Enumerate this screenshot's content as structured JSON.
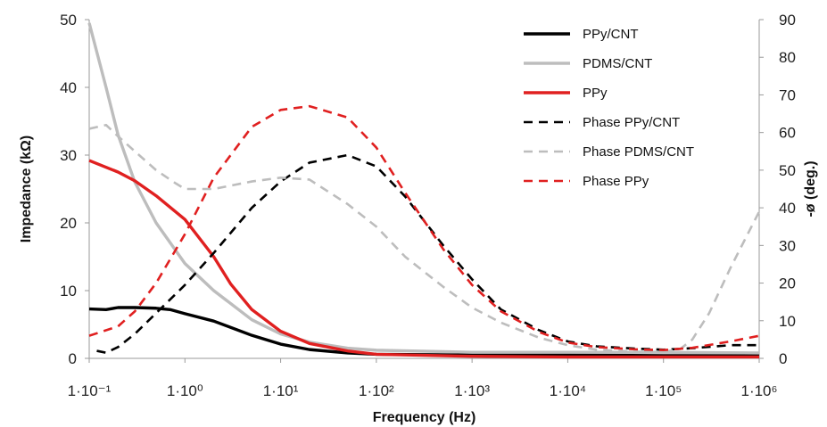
{
  "chart_data": {
    "type": "line",
    "xlabel": "Frequency (Hz)",
    "ylabel": "Impedance (kΩ)",
    "y2label": "-ø (deg.)",
    "x_scale": "log",
    "xlim": [
      0.1,
      1000000
    ],
    "x_ticks": [
      0.1,
      1,
      10,
      100,
      1000,
      10000,
      100000,
      1000000
    ],
    "x_tick_labels": [
      "1·10⁻¹",
      "1·10⁰",
      "1·10¹",
      "1·10²",
      "1·10³",
      "1·10⁴",
      "1·10⁵",
      "1·10⁶"
    ],
    "ylim": [
      0,
      50
    ],
    "y_ticks": [
      0,
      10,
      20,
      30,
      40,
      50
    ],
    "y2lim": [
      0,
      90
    ],
    "y2_ticks": [
      0,
      10,
      20,
      30,
      40,
      50,
      60,
      70,
      80,
      90
    ],
    "grid": false,
    "legend_position": "top-right",
    "series": [
      {
        "name": "PPy/CNT",
        "axis": "left",
        "color": "#000000",
        "dash": "solid",
        "points": [
          [
            0.1,
            7.3
          ],
          [
            0.15,
            7.2
          ],
          [
            0.2,
            7.5
          ],
          [
            0.3,
            7.5
          ],
          [
            0.5,
            7.4
          ],
          [
            0.7,
            7.2
          ],
          [
            1,
            6.6
          ],
          [
            2,
            5.5
          ],
          [
            5,
            3.4
          ],
          [
            10,
            2.1
          ],
          [
            20,
            1.3
          ],
          [
            50,
            0.8
          ],
          [
            100,
            0.6
          ],
          [
            1000,
            0.5
          ],
          [
            10000,
            0.5
          ],
          [
            100000,
            0.4
          ],
          [
            1000000,
            0.4
          ]
        ]
      },
      {
        "name": "PDMS/CNT",
        "axis": "left",
        "color": "#bdbdbd",
        "dash": "solid",
        "points": [
          [
            0.1,
            49.5
          ],
          [
            0.15,
            40
          ],
          [
            0.2,
            33
          ],
          [
            0.3,
            26
          ],
          [
            0.5,
            20
          ],
          [
            1,
            14
          ],
          [
            2,
            10
          ],
          [
            5,
            5.7
          ],
          [
            10,
            3.6
          ],
          [
            20,
            2.4
          ],
          [
            50,
            1.5
          ],
          [
            100,
            1.2
          ],
          [
            1000,
            0.9
          ],
          [
            10000,
            0.9
          ],
          [
            100000,
            0.9
          ],
          [
            1000000,
            0.8
          ]
        ]
      },
      {
        "name": "PPy",
        "axis": "left",
        "color": "#e02020",
        "dash": "solid",
        "points": [
          [
            0.1,
            29.2
          ],
          [
            0.2,
            27.5
          ],
          [
            0.3,
            26.2
          ],
          [
            0.5,
            24
          ],
          [
            1,
            20.5
          ],
          [
            2,
            15
          ],
          [
            3,
            11
          ],
          [
            5,
            7.2
          ],
          [
            10,
            4
          ],
          [
            20,
            2.2
          ],
          [
            50,
            1.1
          ],
          [
            100,
            0.6
          ],
          [
            1000,
            0.3
          ],
          [
            10000,
            0.2
          ],
          [
            100000,
            0.2
          ],
          [
            1000000,
            0.2
          ]
        ]
      },
      {
        "name": "Phase PPy/CNT",
        "axis": "right",
        "color": "#000000",
        "dash": "dashed",
        "points": [
          [
            0.12,
            2
          ],
          [
            0.15,
            1.5
          ],
          [
            0.2,
            3
          ],
          [
            0.3,
            6.5
          ],
          [
            0.5,
            12
          ],
          [
            1,
            19.5
          ],
          [
            2,
            28
          ],
          [
            5,
            40
          ],
          [
            10,
            47
          ],
          [
            20,
            52
          ],
          [
            50,
            54
          ],
          [
            100,
            51
          ],
          [
            200,
            43
          ],
          [
            500,
            30
          ],
          [
            1000,
            21
          ],
          [
            2000,
            13
          ],
          [
            5000,
            7.5
          ],
          [
            10000,
            4.5
          ],
          [
            20000,
            3.2
          ],
          [
            50000,
            2.6
          ],
          [
            100000,
            2.3
          ],
          [
            200000,
            2.7
          ],
          [
            500000,
            3.5
          ],
          [
            1000000,
            3.5
          ]
        ]
      },
      {
        "name": "Phase PDMS/CNT",
        "axis": "right",
        "color": "#bdbdbd",
        "dash": "dashed",
        "points": [
          [
            0.1,
            61
          ],
          [
            0.15,
            62
          ],
          [
            0.2,
            59
          ],
          [
            0.3,
            55
          ],
          [
            0.5,
            50
          ],
          [
            0.8,
            46.5
          ],
          [
            1,
            45
          ],
          [
            2,
            45
          ],
          [
            5,
            47
          ],
          [
            10,
            48
          ],
          [
            20,
            47.5
          ],
          [
            50,
            41
          ],
          [
            100,
            35
          ],
          [
            200,
            27
          ],
          [
            500,
            19
          ],
          [
            1000,
            13.5
          ],
          [
            2000,
            9.5
          ],
          [
            5000,
            5.5
          ],
          [
            10000,
            3.5
          ],
          [
            20000,
            2.3
          ],
          [
            50000,
            1.8
          ],
          [
            100000,
            1.7
          ],
          [
            150000,
            2.5
          ],
          [
            200000,
            5
          ],
          [
            300000,
            12
          ],
          [
            500000,
            24
          ],
          [
            1000000,
            39
          ]
        ]
      },
      {
        "name": "Phase PPy",
        "axis": "right",
        "color": "#e02020",
        "dash": "dashed",
        "points": [
          [
            0.1,
            6
          ],
          [
            0.2,
            8.5
          ],
          [
            0.3,
            12.5
          ],
          [
            0.5,
            20
          ],
          [
            1,
            33
          ],
          [
            2,
            48
          ],
          [
            5,
            61.5
          ],
          [
            10,
            66
          ],
          [
            20,
            67
          ],
          [
            50,
            64
          ],
          [
            100,
            56
          ],
          [
            200,
            44
          ],
          [
            500,
            29
          ],
          [
            1000,
            19.5
          ],
          [
            2000,
            12.5
          ],
          [
            5000,
            7
          ],
          [
            10000,
            4.2
          ],
          [
            20000,
            3
          ],
          [
            50000,
            2.4
          ],
          [
            100000,
            2.2
          ],
          [
            200000,
            2.8
          ],
          [
            500000,
            4.5
          ],
          [
            1000000,
            6
          ]
        ]
      }
    ]
  }
}
